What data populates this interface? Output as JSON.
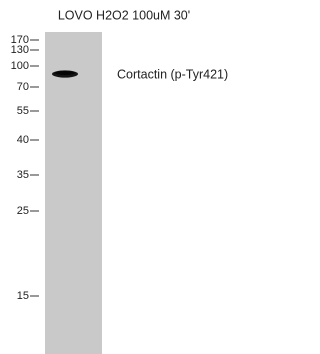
{
  "header": {
    "title": "LOVO H2O2 100uM 30'"
  },
  "markers": [
    "170",
    "130",
    "100",
    "70",
    "55",
    "40",
    "35",
    "25",
    "15"
  ],
  "band": {
    "label": "Cortactin (p-Tyr421)"
  }
}
